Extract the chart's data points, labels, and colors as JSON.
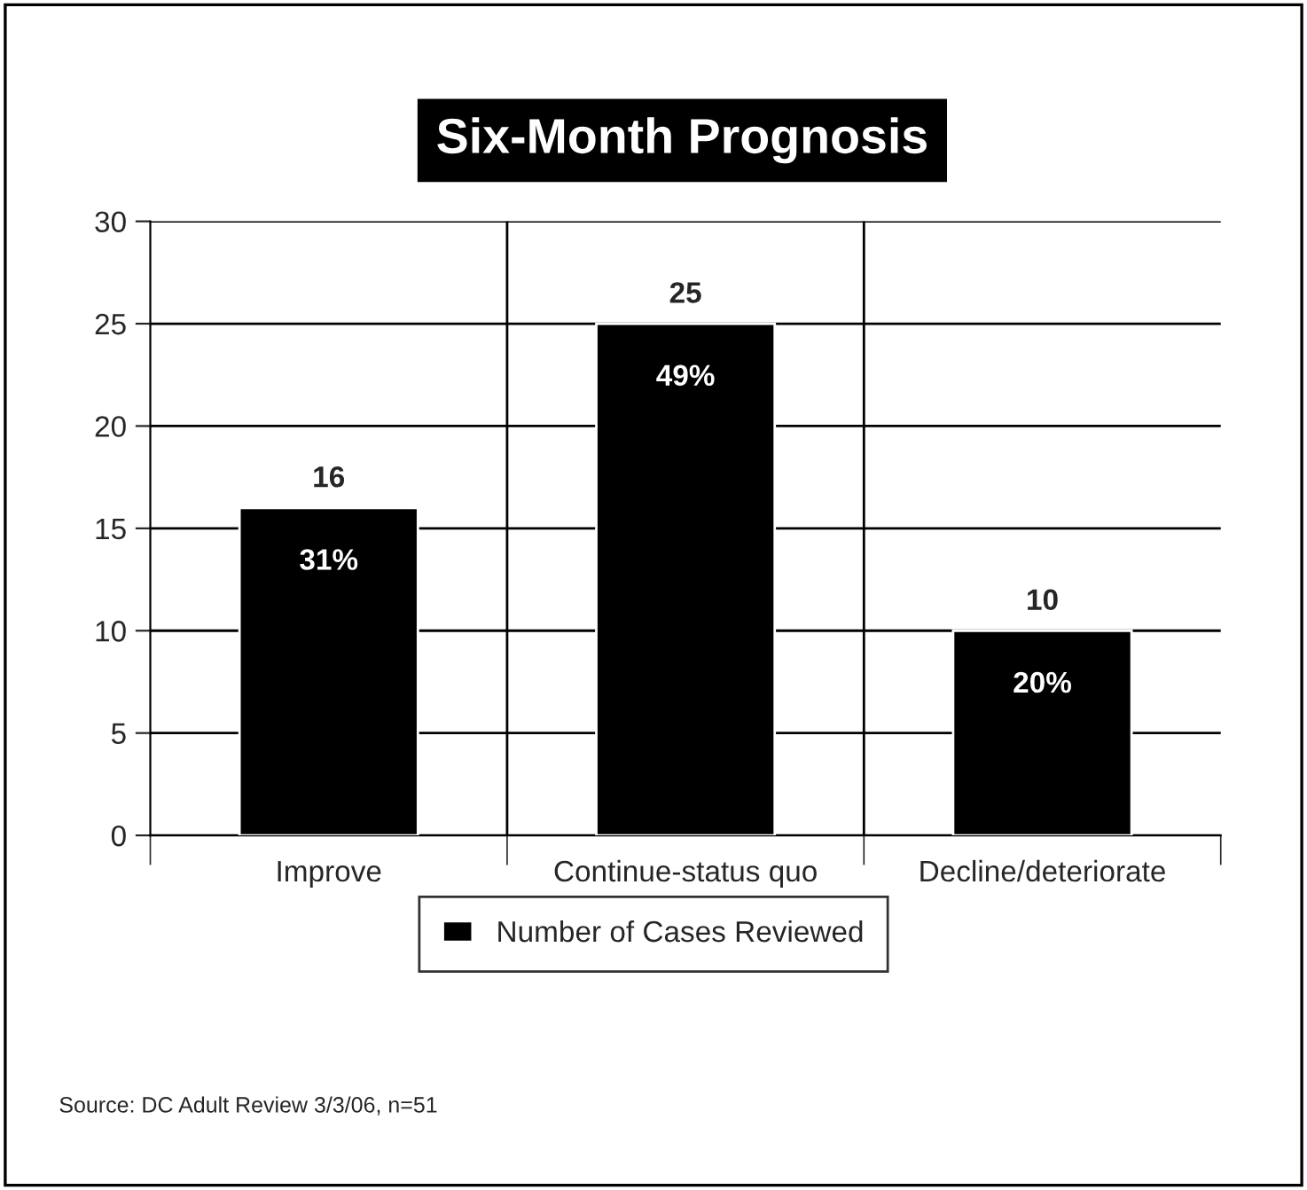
{
  "chart_data": {
    "type": "bar",
    "title": "Six-Month Prognosis",
    "categories": [
      "Improve",
      "Continue-status quo",
      "Decline/deteriorate"
    ],
    "series": [
      {
        "name": "Number of Cases Reviewed",
        "color": "#000000",
        "values": [
          16,
          25,
          10
        ]
      }
    ],
    "ylim": [
      0,
      30
    ],
    "yticks": [
      0,
      5,
      10,
      15,
      20,
      25,
      30
    ],
    "grid": true,
    "legend": "bottom",
    "data_labels": true,
    "annotations": [
      {
        "text": "31%",
        "x": "Improve",
        "y": 16
      },
      {
        "text": "49%",
        "x": "Continue-status quo",
        "y": 25
      },
      {
        "text": "20%",
        "x": "Decline/deteriorate",
        "y": 10
      },
      "Source: DC Adult Review 3/3/06, n=51"
    ]
  }
}
